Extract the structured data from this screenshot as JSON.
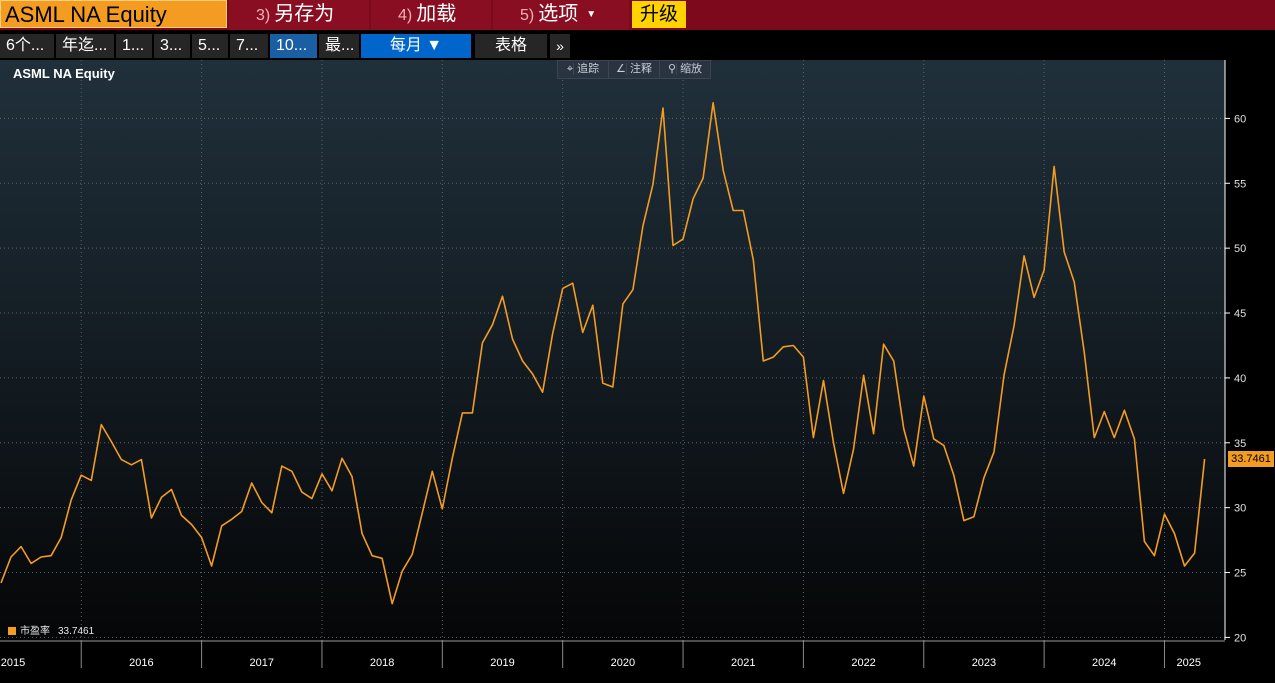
{
  "topbar": {
    "ticker": "ASML NA Equity",
    "buttons": [
      {
        "num": "3)",
        "label": "另存为"
      },
      {
        "num": "4)",
        "label": "加载"
      },
      {
        "num": "5)",
        "label": "选项",
        "caret": "▼"
      }
    ],
    "upgrade": "升级"
  },
  "period_tabs": [
    "6个...",
    "年迄...",
    "1...",
    "3...",
    "5...",
    "7...",
    "10...",
    "最..."
  ],
  "active_tab": 6,
  "frequency": "每月 ▼",
  "table_button": "表格",
  "more_button": "»",
  "tools": [
    "追踪",
    "注释",
    "缩放"
  ],
  "tool_icons": [
    "crosshair-icon",
    "pencil-icon",
    "magnifier-icon"
  ],
  "colors": {
    "line": "#f39c21",
    "accent_active": "#0066cc"
  },
  "chart_data": {
    "type": "line",
    "title": "ASML NA Equity",
    "xlabel": "",
    "ylabel": "",
    "ylim": [
      19.8,
      64.5
    ],
    "yticks": [
      20,
      25,
      30,
      35,
      40,
      45,
      50,
      55,
      60
    ],
    "year_labels": [
      "2015",
      "2016",
      "2017",
      "2018",
      "2019",
      "2020",
      "2021",
      "2022",
      "2023",
      "2024",
      "2025"
    ],
    "x_start": "2015-05",
    "series": [
      {
        "name": "市盈率",
        "last_value": "33.7461",
        "values": [
          24.2,
          26.2,
          27.0,
          25.7,
          26.2,
          26.3,
          27.7,
          30.6,
          32.5,
          32.1,
          36.4,
          35.1,
          33.7,
          33.3,
          33.7,
          29.2,
          30.8,
          31.4,
          29.4,
          28.7,
          27.7,
          25.5,
          28.6,
          29.1,
          29.7,
          31.9,
          30.4,
          29.6,
          33.2,
          32.8,
          31.2,
          30.7,
          32.6,
          31.3,
          33.8,
          32.4,
          28.0,
          26.3,
          26.1,
          22.6,
          25.1,
          26.4,
          29.6,
          32.8,
          29.9,
          33.8,
          37.3,
          37.3,
          42.7,
          44.1,
          46.3,
          43.0,
          41.3,
          40.3,
          38.9,
          43.4,
          46.9,
          47.3,
          43.5,
          45.6,
          39.6,
          39.3,
          45.7,
          46.8,
          51.7,
          54.9,
          60.8,
          50.2,
          50.7,
          53.8,
          55.4,
          61.2,
          56.0,
          52.9,
          52.9,
          49.1,
          41.3,
          41.6,
          42.4,
          42.5,
          41.6,
          35.4,
          39.8,
          35.0,
          31.1,
          34.5,
          40.2,
          35.7,
          42.6,
          41.3,
          36.1,
          33.2,
          38.6,
          35.3,
          34.8,
          32.5,
          29.0,
          29.3,
          32.3,
          34.3,
          40.2,
          44.0,
          49.4,
          46.2,
          48.3,
          56.3,
          49.7,
          47.4,
          42.0,
          35.4,
          37.4,
          35.4,
          37.5,
          35.3,
          27.4,
          26.3,
          29.5,
          28.0,
          25.5,
          26.5,
          33.7461
        ]
      }
    ]
  }
}
